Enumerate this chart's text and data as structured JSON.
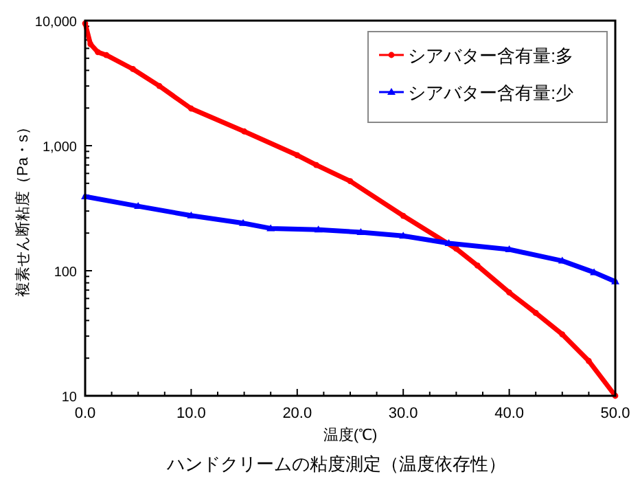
{
  "chart_data": {
    "type": "line",
    "title": "ハンドクリームの粘度測定（温度依存性）",
    "xlabel": "温度(℃)",
    "ylabel": "複素せん断粘度（Pa・s）",
    "log": "y",
    "xlim": [
      0,
      50
    ],
    "xticks": [
      {
        "value": 0,
        "label": "0.0"
      },
      {
        "value": 2.5,
        "label": null
      },
      {
        "value": 5,
        "label": null
      },
      {
        "value": 7.5,
        "label": null
      },
      {
        "value": 10,
        "label": "10.0"
      },
      {
        "value": 12.5,
        "label": null
      },
      {
        "value": 15,
        "label": null
      },
      {
        "value": 17.5,
        "label": null
      },
      {
        "value": 20,
        "label": "20.0"
      },
      {
        "value": 22.5,
        "label": null
      },
      {
        "value": 25,
        "label": null
      },
      {
        "value": 27.5,
        "label": null
      },
      {
        "value": 30,
        "label": "30.0"
      },
      {
        "value": 32.5,
        "label": null
      },
      {
        "value": 35,
        "label": null
      },
      {
        "value": 37.5,
        "label": null
      },
      {
        "value": 40,
        "label": "40.0"
      },
      {
        "value": 42.5,
        "label": null
      },
      {
        "value": 45,
        "label": null
      },
      {
        "value": 47.5,
        "label": null
      },
      {
        "value": 50,
        "label": "50.0"
      }
    ],
    "ylim": [
      10,
      10000
    ],
    "yticks": [
      10,
      {
        "value": 20,
        "label": null
      },
      {
        "value": 30,
        "label": null
      },
      {
        "value": 40,
        "label": null
      },
      {
        "value": 50,
        "label": null
      },
      {
        "value": 60,
        "label": null
      },
      {
        "value": 70,
        "label": null
      },
      {
        "value": 80,
        "label": null
      },
      {
        "value": 90,
        "label": null
      },
      100,
      {
        "value": 200,
        "label": null
      },
      {
        "value": 300,
        "label": null
      },
      {
        "value": 400,
        "label": null
      },
      {
        "value": 500,
        "label": null
      },
      {
        "value": 600,
        "label": null
      },
      {
        "value": 700,
        "label": null
      },
      {
        "value": 800,
        "label": null
      },
      {
        "value": 900,
        "label": null
      },
      {
        "value": 1000,
        "label": "1,000"
      },
      {
        "value": 2000,
        "label": null
      },
      {
        "value": 3000,
        "label": null
      },
      {
        "value": 4000,
        "label": null
      },
      {
        "value": 5000,
        "label": null
      },
      {
        "value": 6000,
        "label": null
      },
      {
        "value": 7000,
        "label": null
      },
      {
        "value": 8000,
        "label": null
      },
      {
        "value": 9000,
        "label": null
      },
      {
        "value": 10000,
        "label": "10,000"
      }
    ],
    "grid": false,
    "legend": "top right",
    "line_style": "solid",
    "series": [
      {
        "name": "シアバター含有量:多",
        "color": "#ff0000",
        "marker": "circle",
        "x": [
          0,
          0.5,
          1.2,
          2,
          4.5,
          7,
          10,
          15,
          20,
          21.8,
          25,
          30,
          35,
          37,
          40,
          42.5,
          45,
          47.5,
          50
        ],
        "values": [
          9500,
          6500,
          5600,
          5300,
          4100,
          3000,
          1980,
          1300,
          840,
          700,
          520,
          275,
          150,
          110,
          67,
          46,
          31,
          19,
          10
        ]
      },
      {
        "name": "シアバター含有量:少",
        "color": "#0000ff",
        "marker": "triangle",
        "x": [
          0,
          5,
          10,
          14.9,
          17.5,
          22,
          26,
          30,
          34.3,
          40,
          45,
          48,
          50
        ],
        "values": [
          392,
          328,
          276,
          240,
          218,
          213,
          203,
          190,
          166,
          148,
          120,
          97,
          82
        ]
      }
    ]
  }
}
